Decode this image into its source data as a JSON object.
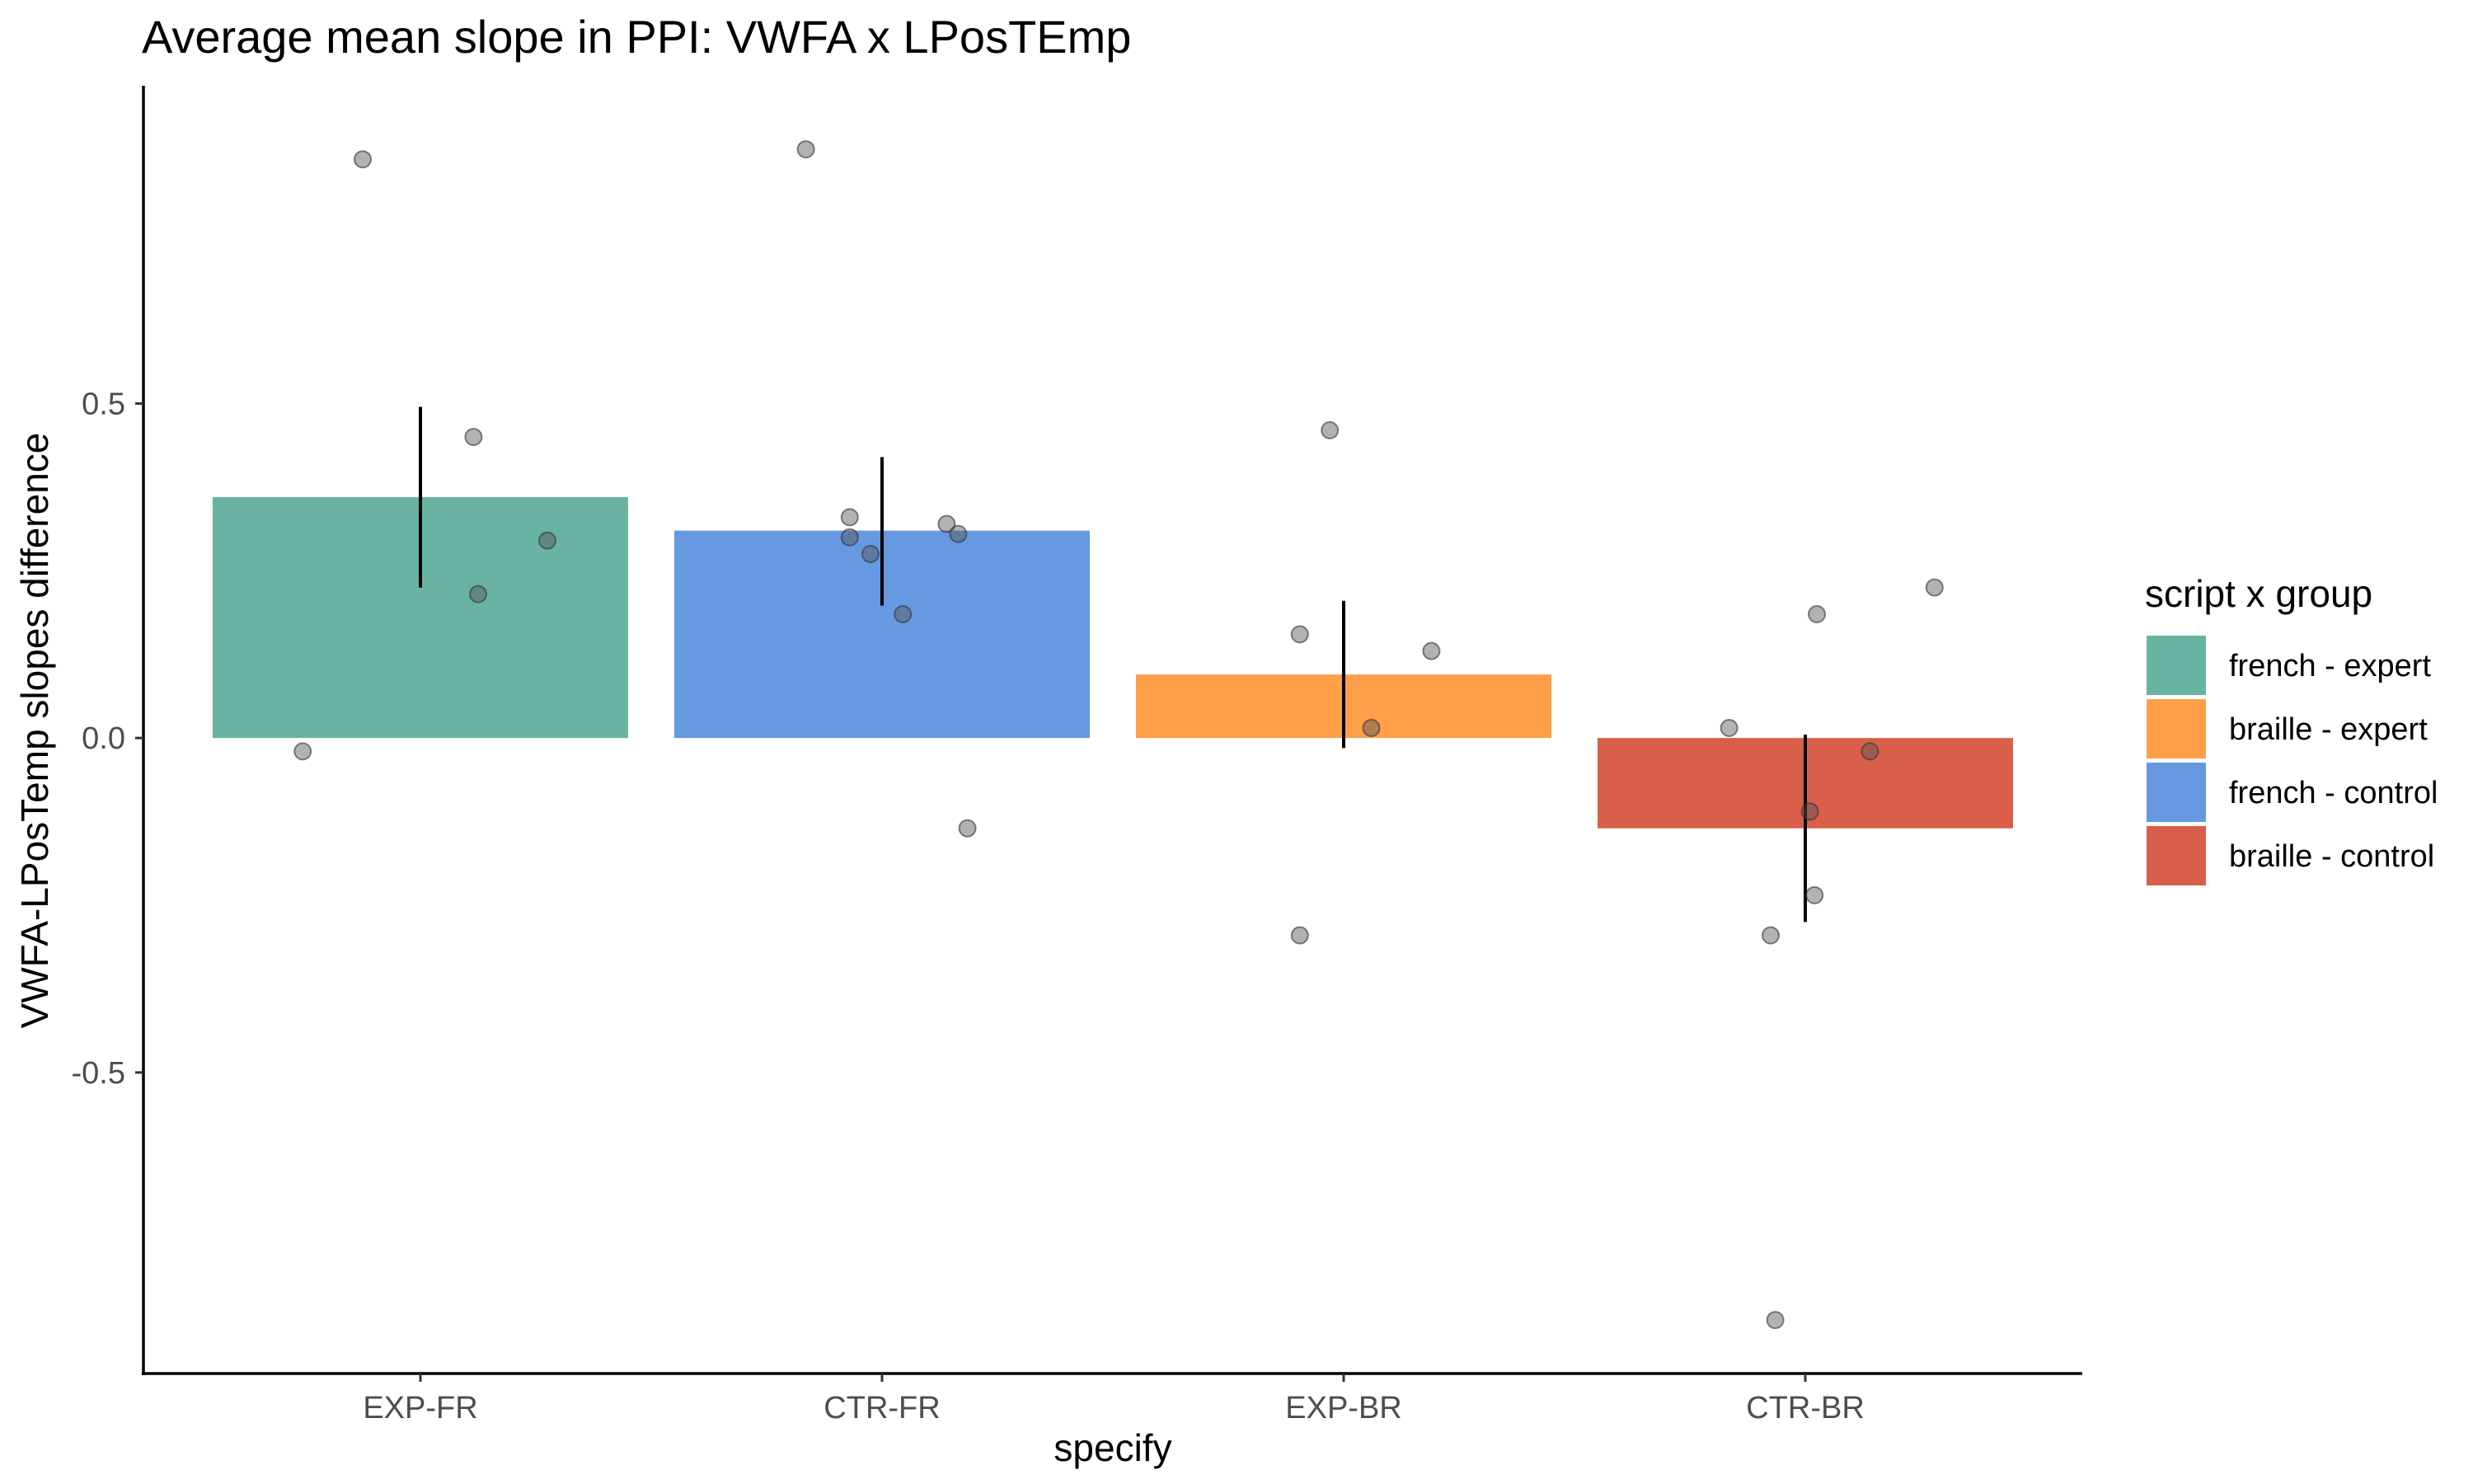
{
  "chart_data": {
    "type": "bar",
    "title": "Average mean slope in PPI: VWFA x LPosTEmp",
    "xlabel": "specify",
    "ylabel": "VWFA-LPosTemp slopes difference",
    "categories": [
      "EXP-FR",
      "CTR-FR",
      "EXP-BR",
      "CTR-BR"
    ],
    "series_names": [
      "french - expert",
      "french - control",
      "braille - expert",
      "braille - control"
    ],
    "values": [
      0.36,
      0.31,
      0.095,
      -0.135
    ],
    "error_bars": [
      {
        "low": 0.225,
        "high": 0.495
      },
      {
        "low": 0.198,
        "high": 0.42
      },
      {
        "low": -0.015,
        "high": 0.205
      },
      {
        "low": -0.275,
        "high": 0.005
      }
    ],
    "points": [
      {
        "category": "EXP-FR",
        "x_offset": -0.255,
        "y": -0.02
      },
      {
        "category": "EXP-FR",
        "x_offset": -0.125,
        "y": 0.865
      },
      {
        "category": "EXP-FR",
        "x_offset": 0.115,
        "y": 0.45
      },
      {
        "category": "EXP-FR",
        "x_offset": 0.125,
        "y": 0.215
      },
      {
        "category": "EXP-FR",
        "x_offset": 0.275,
        "y": 0.295
      },
      {
        "category": "CTR-FR",
        "x_offset": -0.165,
        "y": 0.88
      },
      {
        "category": "CTR-FR",
        "x_offset": -0.07,
        "y": 0.33
      },
      {
        "category": "CTR-FR",
        "x_offset": -0.07,
        "y": 0.3
      },
      {
        "category": "CTR-FR",
        "x_offset": -0.025,
        "y": 0.275
      },
      {
        "category": "CTR-FR",
        "x_offset": 0.045,
        "y": 0.185
      },
      {
        "category": "CTR-FR",
        "x_offset": 0.14,
        "y": 0.32
      },
      {
        "category": "CTR-FR",
        "x_offset": 0.165,
        "y": 0.305
      },
      {
        "category": "CTR-FR",
        "x_offset": 0.185,
        "y": -0.135
      },
      {
        "category": "EXP-BR",
        "x_offset": -0.095,
        "y": -0.295
      },
      {
        "category": "EXP-BR",
        "x_offset": -0.095,
        "y": 0.155
      },
      {
        "category": "EXP-BR",
        "x_offset": -0.03,
        "y": 0.46
      },
      {
        "category": "EXP-BR",
        "x_offset": 0.06,
        "y": 0.015
      },
      {
        "category": "EXP-BR",
        "x_offset": 0.19,
        "y": 0.13
      },
      {
        "category": "CTR-BR",
        "x_offset": -0.165,
        "y": 0.015
      },
      {
        "category": "CTR-BR",
        "x_offset": -0.075,
        "y": -0.295
      },
      {
        "category": "CTR-BR",
        "x_offset": -0.065,
        "y": -0.87
      },
      {
        "category": "CTR-BR",
        "x_offset": 0.01,
        "y": -0.11
      },
      {
        "category": "CTR-BR",
        "x_offset": 0.025,
        "y": 0.185
      },
      {
        "category": "CTR-BR",
        "x_offset": 0.02,
        "y": -0.235
      },
      {
        "category": "CTR-BR",
        "x_offset": 0.14,
        "y": -0.02
      },
      {
        "category": "CTR-BR",
        "x_offset": 0.28,
        "y": 0.225
      }
    ],
    "ylim": [
      -0.95,
      0.975
    ],
    "yticks": [
      -0.5,
      0.0,
      0.5
    ],
    "ytick_labels": [
      "-0.5",
      "0.0",
      "0.5"
    ],
    "grid": false,
    "legend": {
      "title": "script x group",
      "placement": "right",
      "entries": [
        {
          "label": "french - expert",
          "color": "#69b3a2"
        },
        {
          "label": "braille - expert",
          "color": "#ff9f4a"
        },
        {
          "label": "french - control",
          "color": "#6699e1"
        },
        {
          "label": "braille - control",
          "color": "#d95f4a"
        }
      ]
    },
    "colors": {
      "EXP-FR": "#69b3a2",
      "CTR-FR": "#6699e1",
      "EXP-BR": "#ff9f4a",
      "CTR-BR": "#d95f4a"
    }
  }
}
